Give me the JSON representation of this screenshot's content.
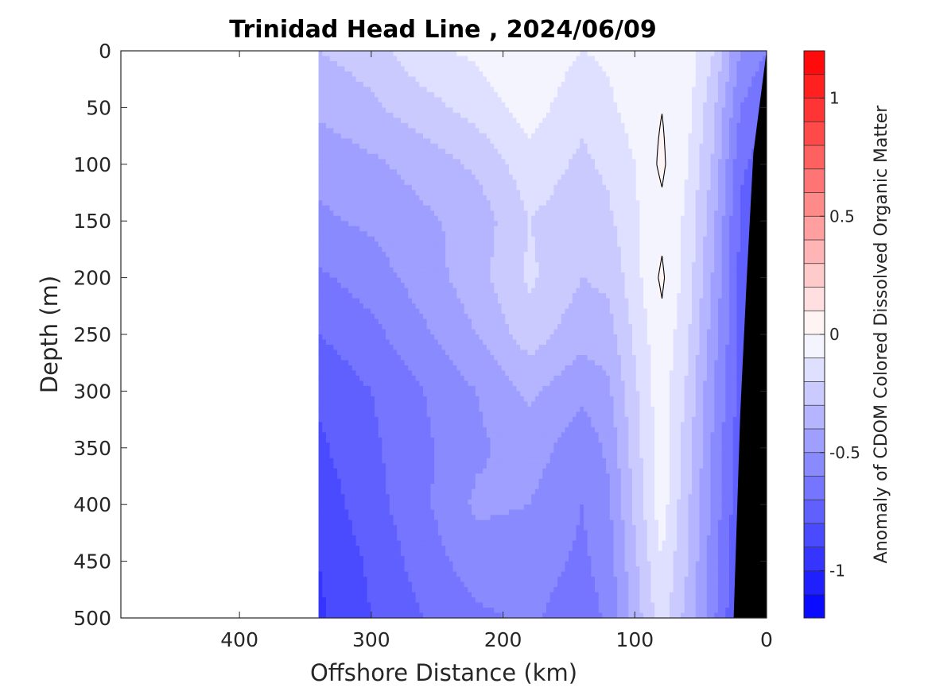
{
  "chart_data": {
    "type": "heatmap",
    "subtype": "filled-contour section",
    "title": "Trinidad Head Line , 2024/06/09",
    "xlabel": "Offshore Distance (km)",
    "ylabel": "Depth (m)",
    "colorbar_label": "Anomaly of CDOM Colored Dissolved Organic Matter",
    "xlim": [
      490,
      0
    ],
    "x_reversed": true,
    "ylim": [
      0,
      500
    ],
    "y_reversed": true,
    "x_ticks": [
      400,
      300,
      200,
      100,
      0
    ],
    "y_ticks": [
      0,
      50,
      100,
      150,
      200,
      250,
      300,
      350,
      400,
      450,
      500
    ],
    "colorbar_range": [
      -1.2,
      1.2
    ],
    "colorbar_ticks": [
      -1,
      -0.5,
      0,
      0.5,
      1
    ],
    "colorbar_levels": 24,
    "colormap": {
      "negative": "#0000ff",
      "zero": "#ffffff",
      "positive": "#ff0000"
    },
    "data_extent_km": [
      340,
      0
    ],
    "bathymetry": {
      "color": "#000000",
      "points": [
        [
          0,
          0
        ],
        [
          10,
          90
        ],
        [
          15,
          200
        ],
        [
          20,
          320
        ],
        [
          25,
          500
        ]
      ]
    },
    "columns": [
      {
        "x": 340,
        "values": [
          -0.3,
          -0.38,
          -0.47,
          -0.52,
          -0.62,
          -0.7,
          -0.78,
          -0.82,
          -0.86,
          -0.9,
          -0.92
        ]
      },
      {
        "x": 300,
        "values": [
          -0.25,
          -0.32,
          -0.42,
          -0.48,
          -0.55,
          -0.63,
          -0.7,
          -0.72,
          -0.74,
          -0.78,
          -0.8
        ]
      },
      {
        "x": 260,
        "values": [
          -0.12,
          -0.24,
          -0.36,
          -0.42,
          -0.45,
          -0.52,
          -0.6,
          -0.62,
          -0.62,
          -0.65,
          -0.7
        ]
      },
      {
        "x": 220,
        "values": [
          -0.08,
          -0.16,
          -0.28,
          -0.36,
          -0.34,
          -0.4,
          -0.5,
          -0.52,
          -0.48,
          -0.55,
          -0.62
        ]
      },
      {
        "x": 180,
        "values": [
          0.0,
          -0.05,
          -0.14,
          -0.2,
          -0.18,
          -0.25,
          -0.38,
          -0.45,
          -0.5,
          -0.55,
          -0.58
        ]
      },
      {
        "x": 140,
        "values": [
          -0.1,
          -0.18,
          -0.22,
          -0.26,
          -0.3,
          -0.36,
          -0.48,
          -0.56,
          -0.6,
          -0.62,
          -0.66
        ]
      },
      {
        "x": 120,
        "values": [
          -0.08,
          -0.12,
          -0.18,
          -0.22,
          -0.28,
          -0.34,
          -0.42,
          -0.48,
          -0.52,
          -0.55,
          -0.58
        ]
      },
      {
        "x": 100,
        "values": [
          -0.05,
          -0.06,
          -0.1,
          -0.12,
          -0.14,
          -0.18,
          -0.22,
          -0.25,
          -0.28,
          -0.32,
          -0.36
        ]
      },
      {
        "x": 80,
        "values": [
          0.0,
          0.0,
          0.02,
          -0.02,
          0.02,
          -0.02,
          -0.04,
          -0.04,
          -0.04,
          -0.1,
          -0.14
        ]
      },
      {
        "x": 60,
        "values": [
          -0.04,
          -0.06,
          -0.1,
          -0.12,
          -0.14,
          -0.18,
          -0.22,
          -0.25,
          -0.28,
          -0.3,
          -0.34
        ]
      },
      {
        "x": 40,
        "values": [
          -0.2,
          -0.28,
          -0.32,
          -0.38,
          -0.42,
          -0.46,
          -0.5,
          -0.52,
          -0.54,
          -0.56,
          -0.58
        ]
      },
      {
        "x": 20,
        "values": [
          -0.5,
          -0.6,
          -0.68,
          -0.72,
          -0.72,
          -0.72,
          -0.74,
          -0.76,
          -0.78,
          -0.8,
          -0.82
        ]
      },
      {
        "x": 0,
        "values": [
          -0.6,
          -0.7,
          -0.75,
          -0.78,
          -0.78,
          -0.78,
          -0.8,
          -0.82,
          -0.84,
          -0.86,
          -0.88
        ]
      }
    ]
  }
}
